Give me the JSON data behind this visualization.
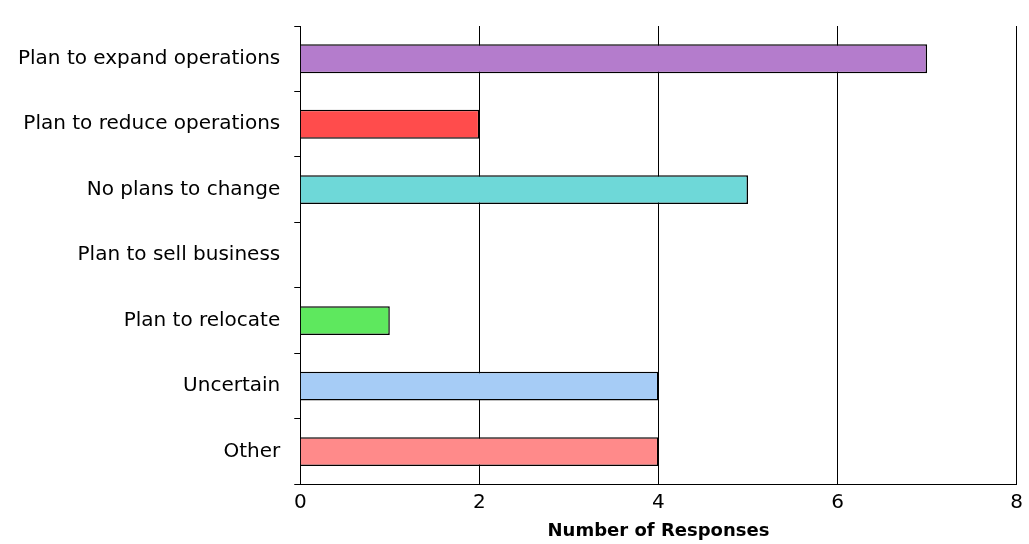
{
  "chart_data": {
    "type": "bar",
    "orientation": "horizontal",
    "xlabel": "Number of Responses",
    "categories": [
      "Plan to expand operations",
      "Plan to reduce operations",
      "No plans to change",
      "Plan to sell business",
      "Plan to relocate",
      "Uncertain",
      "Other"
    ],
    "values": [
      7,
      2,
      5,
      0,
      1,
      4,
      4
    ],
    "colors": [
      "#b47ccc",
      "#ff4c4c",
      "#6ed8d8",
      "#cccccc",
      "#5ee85e",
      "#a6ccf6",
      "#ff8a8a"
    ],
    "xlim": [
      0,
      8
    ],
    "xticks": [
      0,
      2,
      4,
      6,
      8
    ],
    "grid": "x",
    "legend": false
  }
}
